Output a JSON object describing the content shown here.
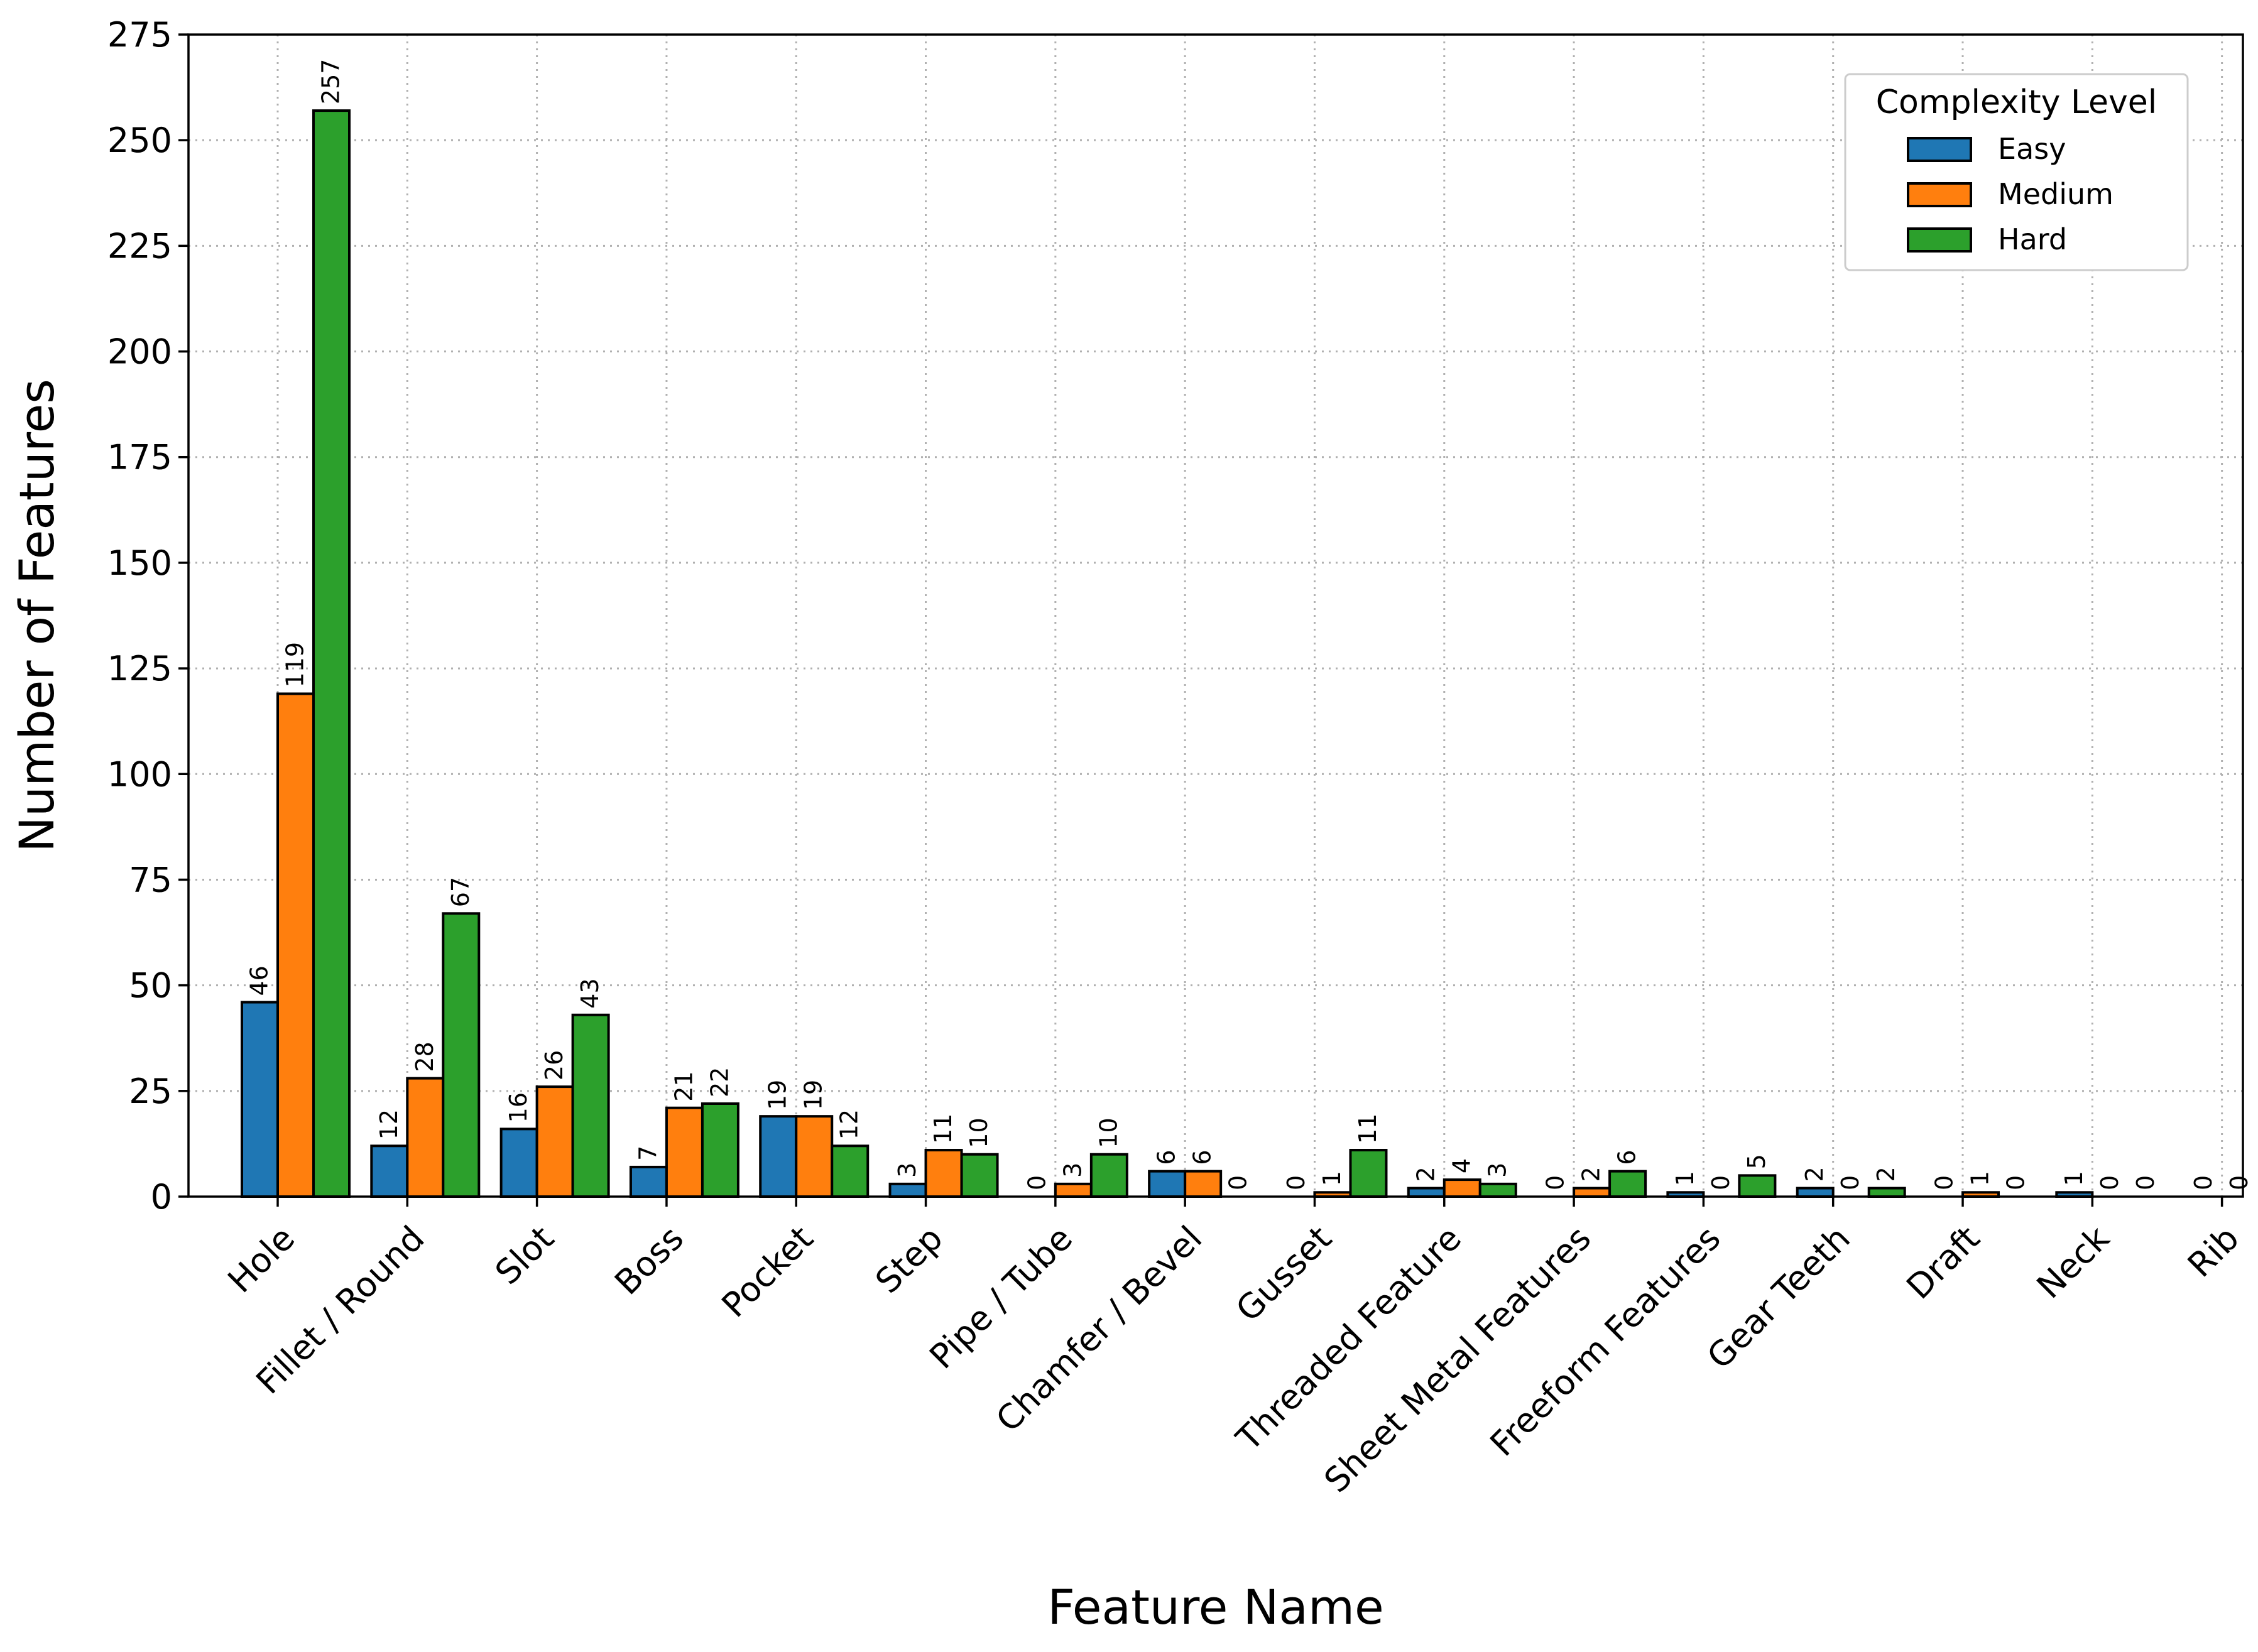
{
  "chart_data": {
    "type": "bar",
    "title": "",
    "xlabel": "Feature Name",
    "ylabel": "Number of Features",
    "ylim": [
      0,
      275
    ],
    "yticks": [
      0,
      25,
      50,
      75,
      100,
      125,
      150,
      175,
      200,
      225,
      250,
      275
    ],
    "grid": true,
    "legend": {
      "title": "Complexity Level",
      "placement": "top-right"
    },
    "categories": [
      "Hole",
      "Fillet / Round",
      "Slot",
      "Boss",
      "Pocket",
      "Step",
      "Pipe / Tube",
      "Chamfer / Bevel",
      "Gusset",
      "Threaded Feature",
      "Sheet Metal Features",
      "Freeform Features",
      "Gear Teeth",
      "Draft",
      "Neck",
      "Rib"
    ],
    "series": [
      {
        "name": "Easy",
        "color": "#1f77b4",
        "values": [
          46,
          12,
          16,
          7,
          19,
          3,
          0,
          6,
          0,
          2,
          0,
          1,
          2,
          0,
          1,
          0
        ]
      },
      {
        "name": "Medium",
        "color": "#ff7f0e",
        "values": [
          119,
          28,
          26,
          21,
          19,
          11,
          3,
          6,
          1,
          4,
          2,
          0,
          0,
          1,
          0,
          0
        ]
      },
      {
        "name": "Hard",
        "color": "#2ca02c",
        "values": [
          257,
          67,
          43,
          22,
          12,
          10,
          10,
          0,
          11,
          3,
          6,
          5,
          2,
          0,
          0,
          0
        ]
      }
    ]
  }
}
